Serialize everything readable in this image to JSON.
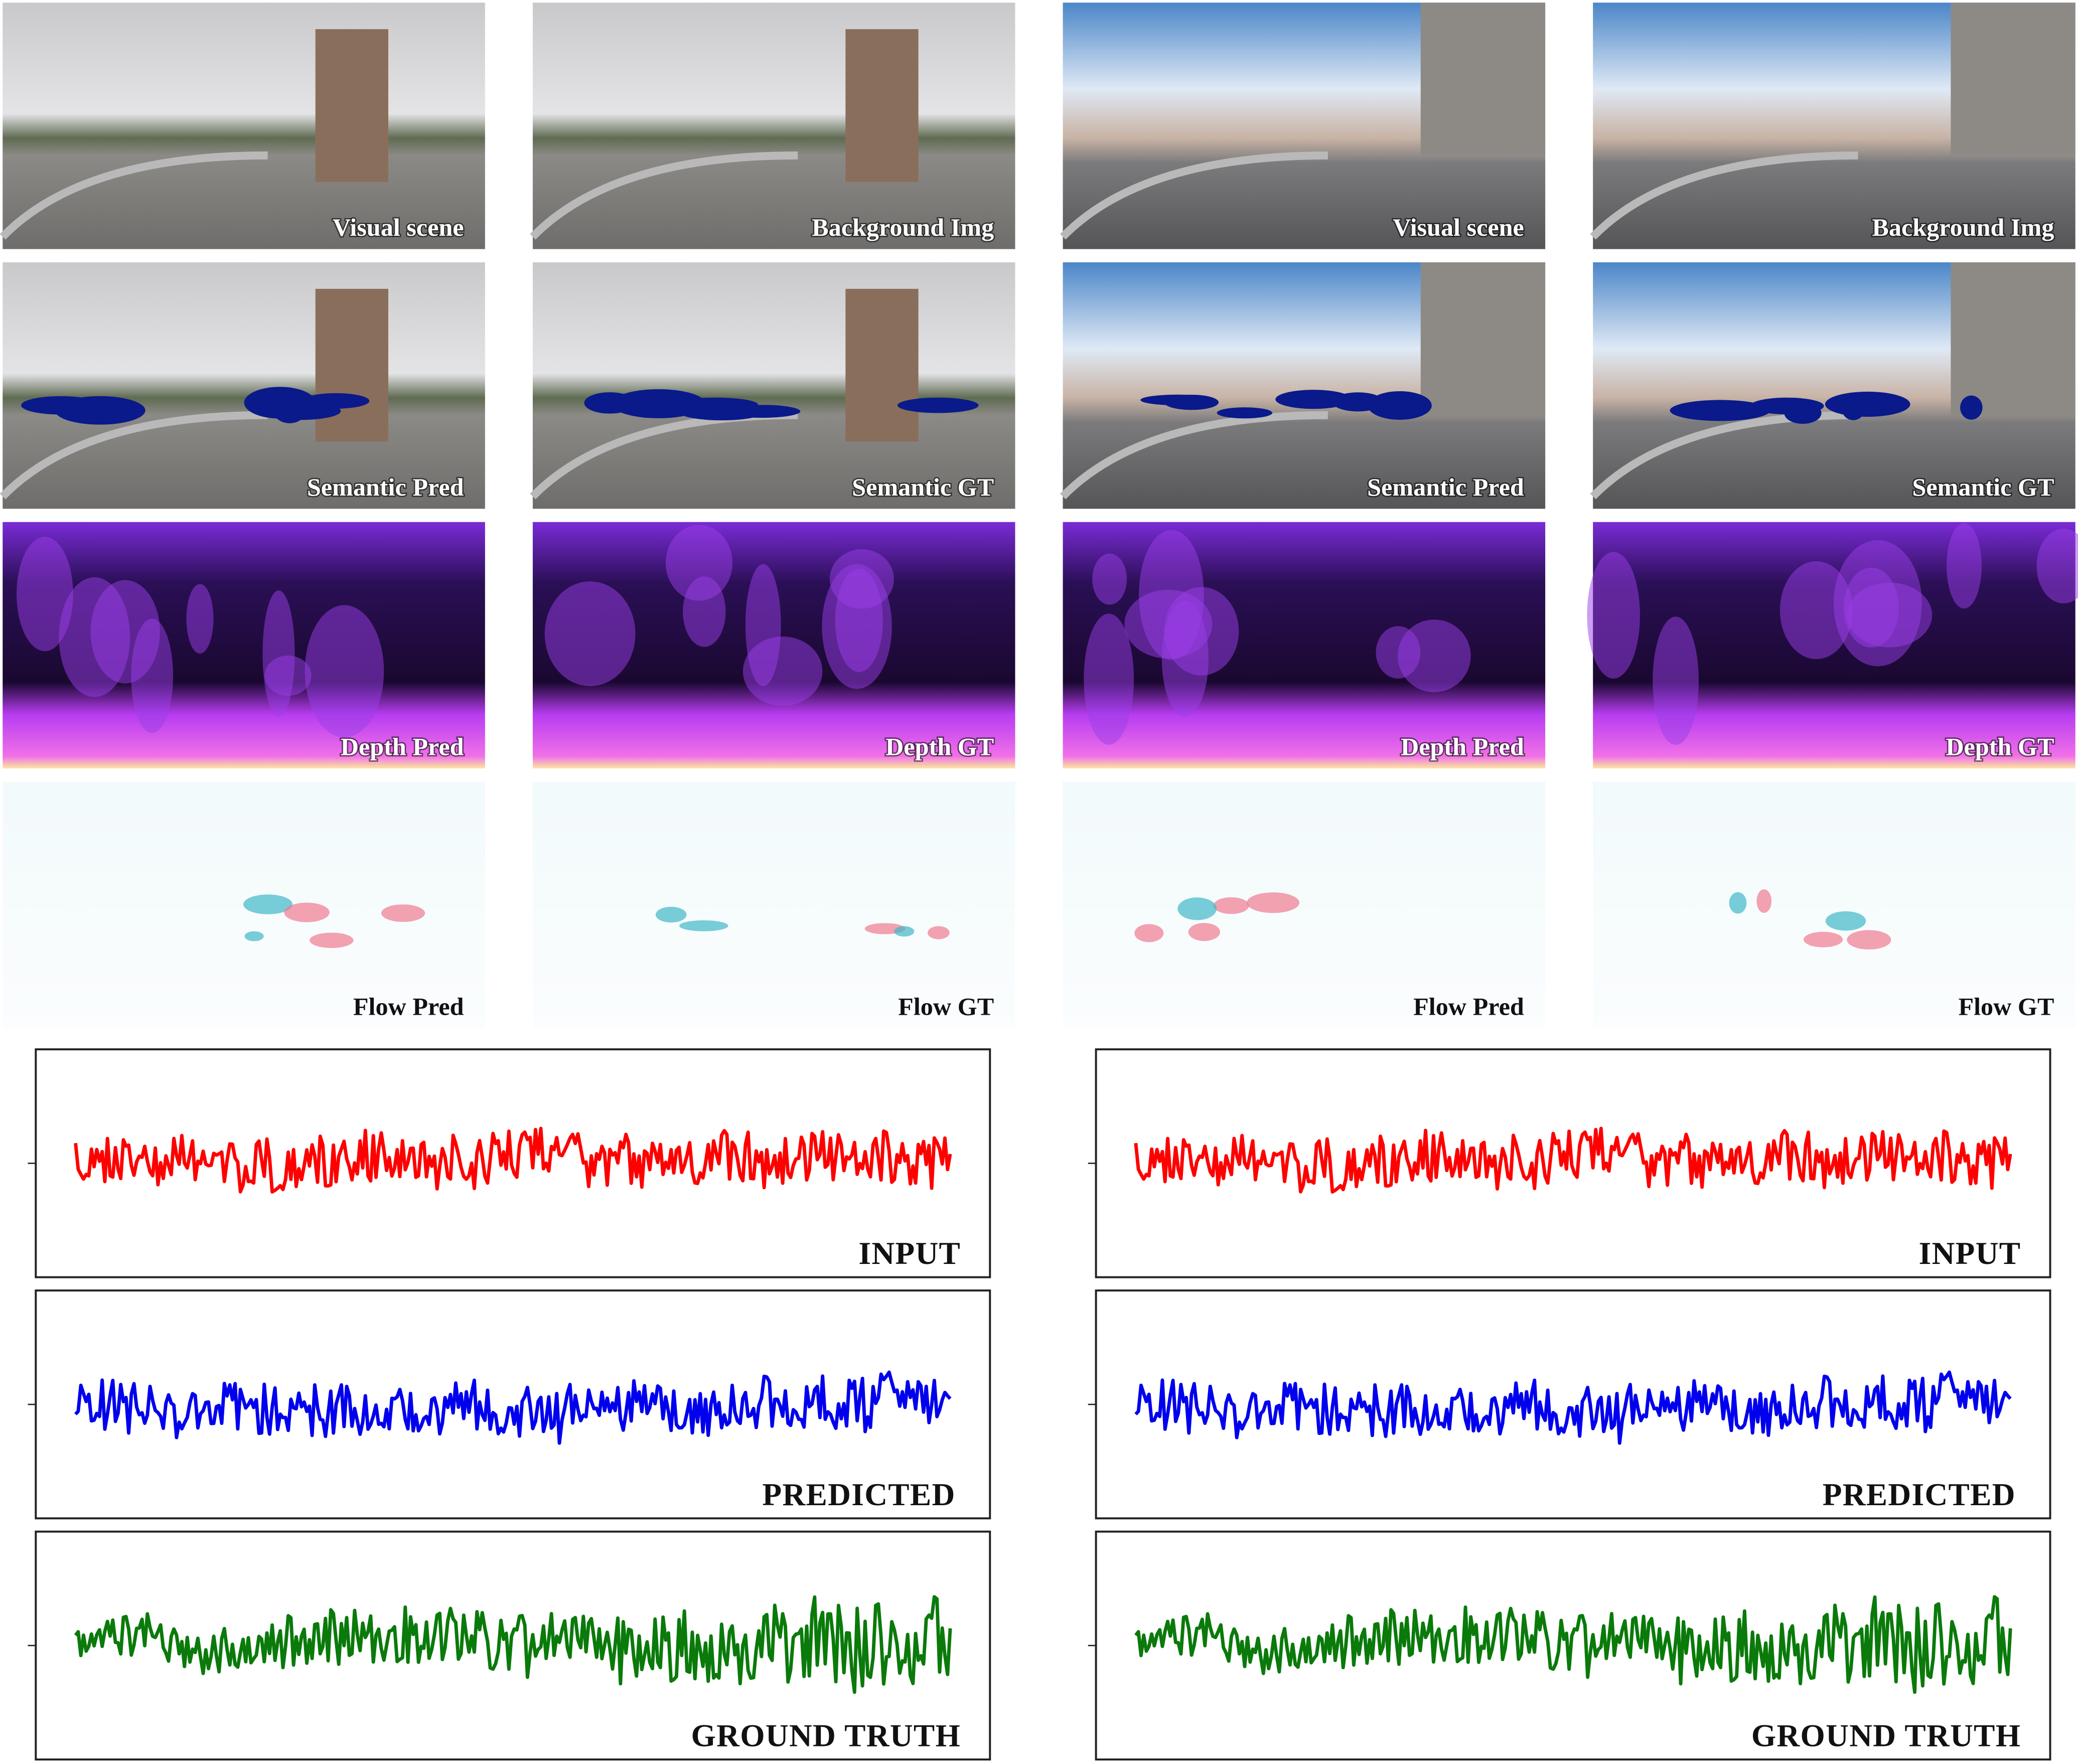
{
  "panels": [
    [
      "Visual scene",
      "Background Img",
      "Visual scene",
      "Background Img"
    ],
    [
      "Semantic Pred",
      "Semantic GT",
      "Semantic Pred",
      "Semantic GT"
    ],
    [
      "Depth Pred",
      "Depth GT",
      "Depth Pred",
      "Depth GT"
    ],
    [
      "Flow Pred",
      "Flow GT",
      "Flow Pred",
      "Flow GT"
    ]
  ],
  "signal_plots": [
    {
      "labels": [
        "INPUT",
        "PREDICTED",
        "GROUND TRUTH"
      ]
    },
    {
      "labels": [
        "INPUT",
        "PREDICTED",
        "GROUND TRUTH"
      ]
    }
  ]
}
